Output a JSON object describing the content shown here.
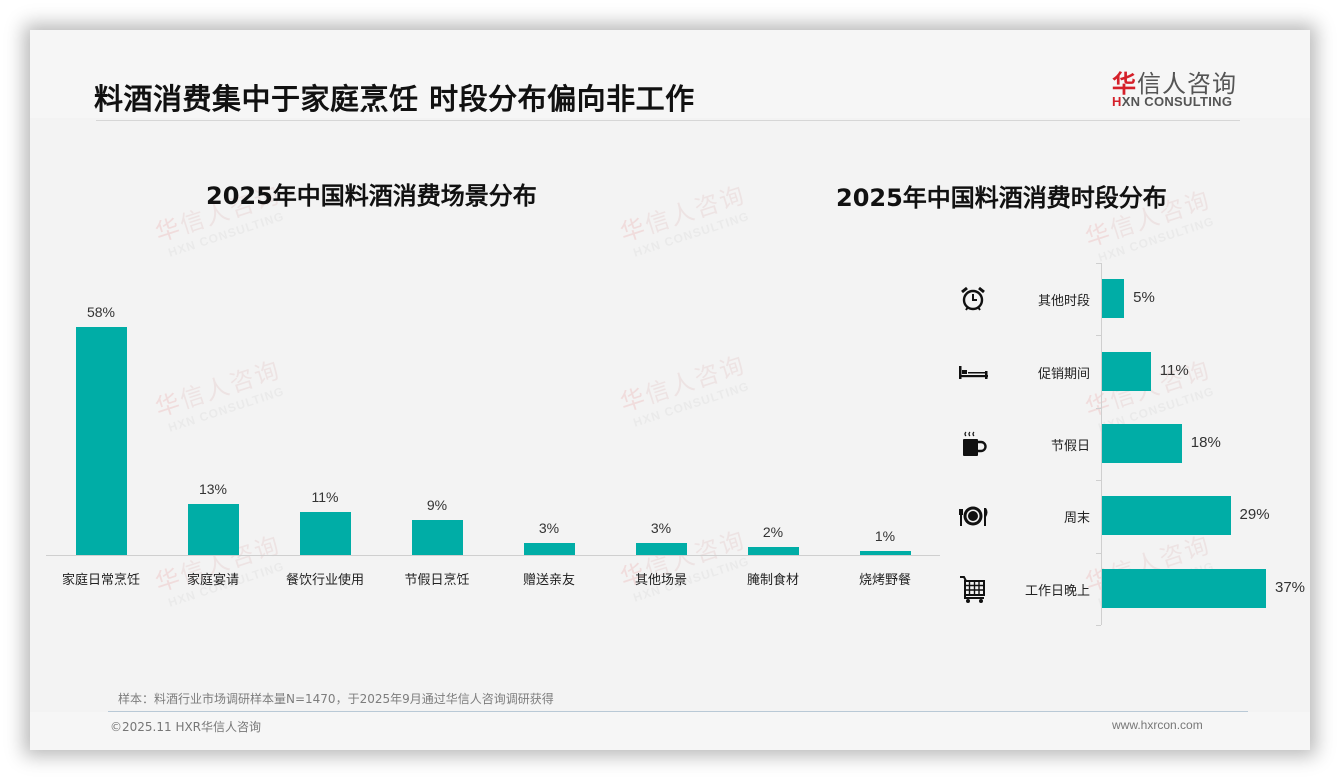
{
  "header": {
    "title": "料酒消费集中于家庭烹饪 时段分布偏向非工作",
    "logo": {
      "cn_first": "华",
      "cn_rest": "信人咨询",
      "en_prefix": "H",
      "en_rest": "XN CONSULTING"
    }
  },
  "watermark": {
    "cn_first": "华",
    "cn_rest": "信人咨询",
    "en": "HXN CONSULTING"
  },
  "colors": {
    "bar": "#00ada6",
    "brand_red": "#d5202a",
    "background": "#f3f3f3"
  },
  "chart_data": [
    {
      "type": "bar",
      "title": "2025年中国料酒消费场景分布",
      "categories": [
        "家庭日常烹饪",
        "家庭宴请",
        "餐饮行业使用",
        "节假日烹饪",
        "赠送亲友",
        "其他场景",
        "腌制食材",
        "烧烤野餐"
      ],
      "values": [
        58,
        13,
        11,
        9,
        3,
        3,
        2,
        1
      ],
      "value_labels": [
        "58%",
        "13%",
        "11%",
        "9%",
        "3%",
        "3%",
        "2%",
        "1%"
      ],
      "unit": "%",
      "xlabel": "",
      "ylabel": "",
      "grid": false,
      "legend": "none"
    },
    {
      "type": "bar",
      "orientation": "horizontal",
      "title": "2025年中国料酒消费时段分布",
      "categories": [
        "其他时段",
        "促销期间",
        "节假日",
        "周末",
        "工作日晚上"
      ],
      "values": [
        5,
        11,
        18,
        29,
        37
      ],
      "value_labels": [
        "5%",
        "11%",
        "18%",
        "29%",
        "37%"
      ],
      "icons": [
        "alarm-clock-icon",
        "bed-icon",
        "coffee-cup-icon",
        "plate-cutlery-icon",
        "shopping-cart-icon"
      ],
      "unit": "%",
      "xlabel": "",
      "ylabel": "",
      "grid": false,
      "legend": "none"
    }
  ],
  "footer": {
    "note": "样本：料酒行业市场调研样本量N=1470，于2025年9月通过华信人咨询调研获得",
    "copyright": "©2025.11 HXR华信人咨询",
    "website": "www.hxrcon.com"
  }
}
